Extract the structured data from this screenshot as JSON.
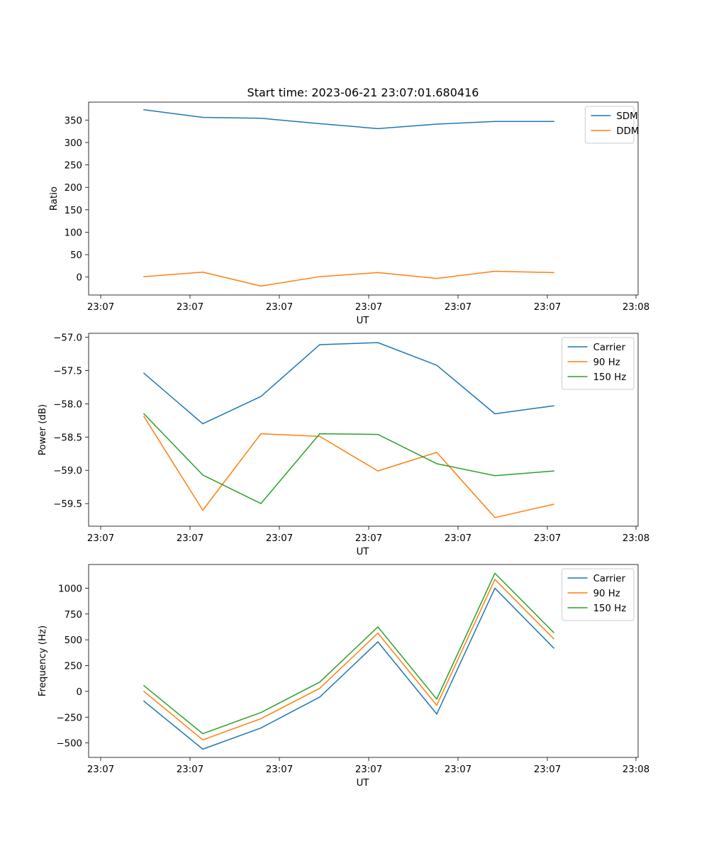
{
  "figure": {
    "title": "Start time: 2023-06-21 23:07:01.680416"
  },
  "chart_data": [
    {
      "type": "line",
      "xlabel": "UT",
      "ylabel": "Ratio",
      "x_tick_labels": [
        "23:07",
        "23:07",
        "23:07",
        "23:07",
        "23:07",
        "23:07",
        "23:08"
      ],
      "y_ticks": [
        0,
        50,
        100,
        150,
        200,
        250,
        300,
        350
      ],
      "ylim": [
        -40,
        390
      ],
      "legend_position": "upper right",
      "series": [
        {
          "name": "SDM",
          "color": "#1f77b4",
          "values": [
            373,
            356,
            354,
            342,
            331,
            341,
            347,
            347
          ]
        },
        {
          "name": "DDM",
          "color": "#ff7f0e",
          "values": [
            1,
            11,
            -20,
            1,
            10,
            -3,
            13,
            10
          ]
        }
      ]
    },
    {
      "type": "line",
      "xlabel": "UT",
      "ylabel": "Power (dB)",
      "x_tick_labels": [
        "23:07",
        "23:07",
        "23:07",
        "23:07",
        "23:07",
        "23:07",
        "23:08"
      ],
      "y_ticks": [
        -59.5,
        -59.0,
        -58.5,
        -58.0,
        -57.5,
        -57.0
      ],
      "y_tick_labels": [
        "−59.5",
        "−59.0",
        "−58.5",
        "−58.0",
        "−57.5",
        "−57.0"
      ],
      "ylim": [
        -59.84,
        -56.94
      ],
      "legend_position": "upper right",
      "series": [
        {
          "name": "Carrier",
          "color": "#1f77b4",
          "values": [
            -57.54,
            -58.3,
            -57.89,
            -57.11,
            -57.08,
            -57.42,
            -58.15,
            -58.03
          ]
        },
        {
          "name": "90 Hz",
          "color": "#ff7f0e",
          "values": [
            -58.19,
            -59.6,
            -58.45,
            -58.49,
            -59.01,
            -58.73,
            -59.71,
            -59.51
          ]
        },
        {
          "name": "150 Hz",
          "color": "#2ca02c",
          "values": [
            -58.15,
            -59.07,
            -59.5,
            -58.45,
            -58.46,
            -58.9,
            -59.08,
            -59.01
          ]
        }
      ]
    },
    {
      "type": "line",
      "xlabel": "UT",
      "ylabel": "Frequency (Hz)",
      "x_tick_labels": [
        "23:07",
        "23:07",
        "23:07",
        "23:07",
        "23:07",
        "23:07",
        "23:08"
      ],
      "y_ticks": [
        -500,
        -250,
        0,
        250,
        500,
        750,
        1000
      ],
      "y_tick_labels": [
        "−500",
        "−250",
        "0",
        "250",
        "500",
        "750",
        "1000"
      ],
      "ylim": [
        -640,
        1230
      ],
      "legend_position": "upper right",
      "series": [
        {
          "name": "Carrier",
          "color": "#1f77b4",
          "values": [
            -95,
            -560,
            -355,
            -55,
            480,
            -220,
            1000,
            420
          ]
        },
        {
          "name": "90 Hz",
          "color": "#ff7f0e",
          "values": [
            0,
            -470,
            -265,
            30,
            565,
            -135,
            1085,
            510
          ]
        },
        {
          "name": "150 Hz",
          "color": "#2ca02c",
          "values": [
            55,
            -410,
            -205,
            90,
            625,
            -75,
            1145,
            570
          ]
        }
      ]
    }
  ]
}
